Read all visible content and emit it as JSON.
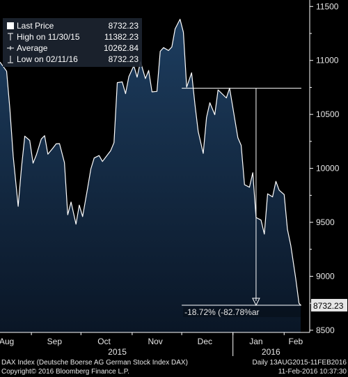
{
  "chart_data": {
    "type": "area",
    "xlim": [
      "2015-08-13",
      "2016-02-11"
    ],
    "ylim": [
      8480,
      11560
    ],
    "y_ticks": [
      8500,
      9000,
      9500,
      10000,
      10500,
      11000,
      11500
    ],
    "y_tick_labels": [
      "8500",
      "9000",
      "9500",
      "10000",
      "10500",
      "11000",
      "11500"
    ],
    "x_ticks": [
      {
        "label": "Aug",
        "date": "2015-08-17"
      },
      {
        "label": "Sep",
        "date": "2015-09-15"
      },
      {
        "label": "Oct",
        "date": "2015-10-15"
      },
      {
        "label": "Nov",
        "date": "2015-11-15"
      },
      {
        "label": "Dec",
        "date": "2015-12-15"
      },
      {
        "label": "Jan",
        "date": "2016-01-15"
      },
      {
        "label": "Feb",
        "date": "2016-02-08"
      }
    ],
    "year_labels": [
      {
        "label": "2015",
        "date": "2015-10-23"
      },
      {
        "label": "2016",
        "date": "2016-01-24"
      }
    ],
    "x": [
      "2015-08-13",
      "2015-08-17",
      "2015-08-19",
      "2015-08-21",
      "2015-08-24",
      "2015-08-26",
      "2015-08-28",
      "2015-08-31",
      "2015-09-02",
      "2015-09-04",
      "2015-09-07",
      "2015-09-09",
      "2015-09-11",
      "2015-09-14",
      "2015-09-16",
      "2015-09-18",
      "2015-09-21",
      "2015-09-23",
      "2015-09-25",
      "2015-09-28",
      "2015-09-30",
      "2015-10-02",
      "2015-10-05",
      "2015-10-07",
      "2015-10-09",
      "2015-10-12",
      "2015-10-14",
      "2015-10-16",
      "2015-10-19",
      "2015-10-21",
      "2015-10-23",
      "2015-10-26",
      "2015-10-28",
      "2015-10-30",
      "2015-11-02",
      "2015-11-04",
      "2015-11-06",
      "2015-11-09",
      "2015-11-11",
      "2015-11-13",
      "2015-11-16",
      "2015-11-18",
      "2015-11-20",
      "2015-11-23",
      "2015-11-25",
      "2015-11-27",
      "2015-11-30",
      "2015-12-02",
      "2015-12-04",
      "2015-12-07",
      "2015-12-09",
      "2015-12-11",
      "2015-12-14",
      "2015-12-16",
      "2015-12-18",
      "2015-12-21",
      "2015-12-23",
      "2015-12-28",
      "2015-12-30",
      "2016-01-04",
      "2016-01-06",
      "2016-01-08",
      "2016-01-11",
      "2016-01-13",
      "2016-01-15",
      "2016-01-18",
      "2016-01-20",
      "2016-01-22",
      "2016-01-25",
      "2016-01-27",
      "2016-01-29",
      "2016-02-01",
      "2016-02-03",
      "2016-02-05",
      "2016-02-08",
      "2016-02-10",
      "2016-02-11"
    ],
    "series": [
      {
        "name": "Last Price",
        "values": [
          10985,
          10900,
          10550,
          10110,
          9648,
          10010,
          10298,
          10259,
          10048,
          10124,
          10271,
          10303,
          10131,
          10188,
          10227,
          10229,
          10053,
          9570,
          9688,
          9483,
          9660,
          9553,
          9814,
          9994,
          10096,
          10119,
          10064,
          10104,
          10164,
          10238,
          10794,
          10801,
          10692,
          10850,
          10951,
          10845,
          10988,
          10832,
          10907,
          10708,
          10713,
          11085,
          11119,
          11092,
          11125,
          11293,
          11382,
          11261,
          10752,
          10886,
          10592,
          10340,
          10139,
          10470,
          10608,
          10497,
          10727,
          10653,
          10743,
          10283,
          10214,
          9849,
          9825,
          9960,
          9545,
          9521,
          9391,
          9764,
          9736,
          9880,
          9798,
          9757,
          9434,
          9286,
          8979,
          8750,
          8732
        ]
      }
    ],
    "legend": [
      {
        "label": "Last Price",
        "value": "8732.23"
      },
      {
        "label": "High on 11/30/15",
        "value": "11382.23"
      },
      {
        "label": "Average",
        "value": "10262.84"
      },
      {
        "label": "Low on 02/11/16",
        "value": "8732.23"
      }
    ],
    "legend_placement": "top-left",
    "last_price_label": "8732.23",
    "annotation": {
      "from_date": "2015-12-01",
      "from_value": 10742,
      "to_date": "2016-02-11",
      "to_value": 8732,
      "text": "-18.72% (-82.78%ar"
    },
    "grid": false
  },
  "footer": {
    "left_1": "DAX Index (Deutsche Boerse AG German Stock Index DAX)",
    "right_1": "Daily 13AUG2015-11FEB2016",
    "left_2": "Copyright© 2016 Bloomberg Finance L.P.",
    "right_2": "11-Feb-2016 10:37:30"
  },
  "colors": {
    "background": "#000000",
    "area_top": "#1d3d5f",
    "area_bottom": "#0a1626",
    "line": "#ffffff",
    "legend_bg": "#1c2430",
    "last_price_box": "#e6e6e6"
  }
}
